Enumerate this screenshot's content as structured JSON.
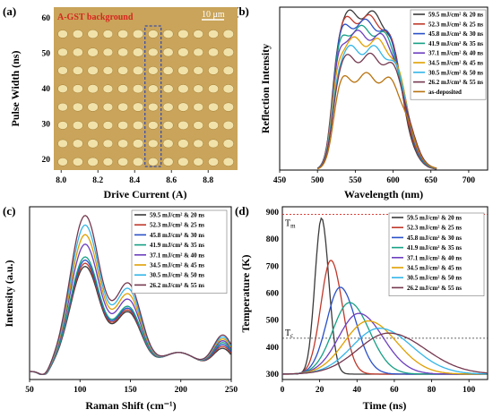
{
  "figure": {
    "panel_a": "(a)",
    "panel_b": "(b)",
    "panel_c": "(c)",
    "panel_d": "(d)"
  },
  "colors": {
    "c1": "#3a3a3a",
    "c2": "#c0392b",
    "c3": "#2a50c8",
    "c4": "#16a085",
    "c5": "#6c3fbf",
    "c6": "#e0a000",
    "c7": "#33b5e8",
    "c8": "#74384f",
    "asdep": "#b8720e",
    "micrograph_bg": "#c9a45a",
    "spot": "#f1e2aa"
  },
  "conditions": [
    "59.5 mJ/cm² & 20 ns",
    "52.3 mJ/cm² & 25 ns",
    "45.8 mJ/cm² & 30 ns",
    "41.9 mJ/cm² & 35 ns",
    "37.1 mJ/cm² & 40 ns",
    "34.5 mJ/cm² & 45 ns",
    "30.5 mJ/cm² & 50 ns",
    "26.2 mJ/cm² & 55 ns"
  ],
  "chart_data": [
    {
      "panel": "(a)",
      "type": "other",
      "annotation": "A-GST background",
      "scale_bar": "10 μm",
      "xlabel": "Drive Current (A)",
      "ylabel": "Pulse Width (ns)",
      "xticks": [
        "8.0",
        "8.2",
        "8.4",
        "8.6",
        "8.8"
      ],
      "yticks": [
        "20",
        "30",
        "40",
        "50",
        "60"
      ],
      "xlim": [
        7.96,
        8.96
      ],
      "ylim": [
        17,
        63
      ],
      "grid": "8 rows × 12 columns of written spots",
      "highlight_column_current": 8.5
    },
    {
      "panel": "(b)",
      "type": "line",
      "xlabel": "Wavelength (nm)",
      "ylabel": "Reflection Intensity",
      "xticks": [
        "450",
        "500",
        "550",
        "600",
        "650",
        "700"
      ],
      "xlim": [
        450,
        725
      ],
      "y_tick_labels_shown": false,
      "legend": "top-right",
      "peak_wavelength": 540,
      "series": [
        {
          "name": "59.5 mJ/cm² & 20 ns",
          "peak": 0.96
        },
        {
          "name": "52.3 mJ/cm² & 25 ns",
          "peak": 0.93
        },
        {
          "name": "45.8 mJ/cm² & 30 ns",
          "peak": 0.9
        },
        {
          "name": "41.9 mJ/cm² & 35 ns",
          "peak": 0.86
        },
        {
          "name": "37.1 mJ/cm² & 40 ns",
          "peak": 0.83
        },
        {
          "name": "34.5 mJ/cm² & 45 ns",
          "peak": 0.79
        },
        {
          "name": "30.5 mJ/cm² & 50 ns",
          "peak": 0.74
        },
        {
          "name": "26.2 mJ/cm² & 55 ns",
          "peak": 0.69
        },
        {
          "name": "as-deposited",
          "peak": 0.57
        }
      ]
    },
    {
      "panel": "(c)",
      "type": "line",
      "xlabel": "Raman Shift (cm⁻¹)",
      "ylabel": "Intensity (a.u.)",
      "xticks": [
        "50",
        "100",
        "150",
        "200",
        "250"
      ],
      "xlim": [
        50,
        250
      ],
      "y_tick_labels_shown": false,
      "legend": "top-right",
      "peaks_cm": [
        105,
        150,
        245
      ],
      "series": [
        {
          "name": "59.5 mJ/cm² & 20 ns",
          "amp": 0.66
        },
        {
          "name": "52.3 mJ/cm² & 25 ns",
          "amp": 0.68
        },
        {
          "name": "45.8 mJ/cm² & 30 ns",
          "amp": 0.7
        },
        {
          "name": "41.9 mJ/cm² & 35 ns",
          "amp": 0.72
        },
        {
          "name": "37.1 mJ/cm² & 40 ns",
          "amp": 0.8
        },
        {
          "name": "34.5 mJ/cm² & 45 ns",
          "amp": 0.86
        },
        {
          "name": "30.5 mJ/cm² & 50 ns",
          "amp": 0.92
        },
        {
          "name": "26.2 mJ/cm² & 55 ns",
          "amp": 0.98
        }
      ]
    },
    {
      "panel": "(d)",
      "type": "line",
      "xlabel": "Time (ns)",
      "ylabel": "Temperature (K)",
      "xticks": [
        "0",
        "20",
        "40",
        "60",
        "80",
        "100"
      ],
      "yticks": [
        "300",
        "400",
        "500",
        "600",
        "700",
        "800",
        "900"
      ],
      "xlim": [
        0,
        110
      ],
      "ylim": [
        280,
        920
      ],
      "Tm_label": "Tm",
      "Tm_value": 892,
      "Tc_label": "Tc",
      "Tc_value": 433,
      "legend": "top-right",
      "series": [
        {
          "name": "59.5 mJ/cm² & 20 ns",
          "peak_time": 21,
          "peak_temp": 878
        },
        {
          "name": "52.3 mJ/cm² & 25 ns",
          "peak_time": 26,
          "peak_temp": 722
        },
        {
          "name": "45.8 mJ/cm² & 30 ns",
          "peak_time": 31,
          "peak_temp": 622
        },
        {
          "name": "41.9 mJ/cm² & 35 ns",
          "peak_time": 36,
          "peak_temp": 565
        },
        {
          "name": "37.1 mJ/cm² & 40 ns",
          "peak_time": 41,
          "peak_temp": 525
        },
        {
          "name": "34.5 mJ/cm² & 45 ns",
          "peak_time": 46,
          "peak_temp": 497
        },
        {
          "name": "30.5 mJ/cm² & 50 ns",
          "peak_time": 52,
          "peak_temp": 470
        },
        {
          "name": "26.2 mJ/cm² & 55 ns",
          "peak_time": 57,
          "peak_temp": 452
        }
      ]
    }
  ]
}
